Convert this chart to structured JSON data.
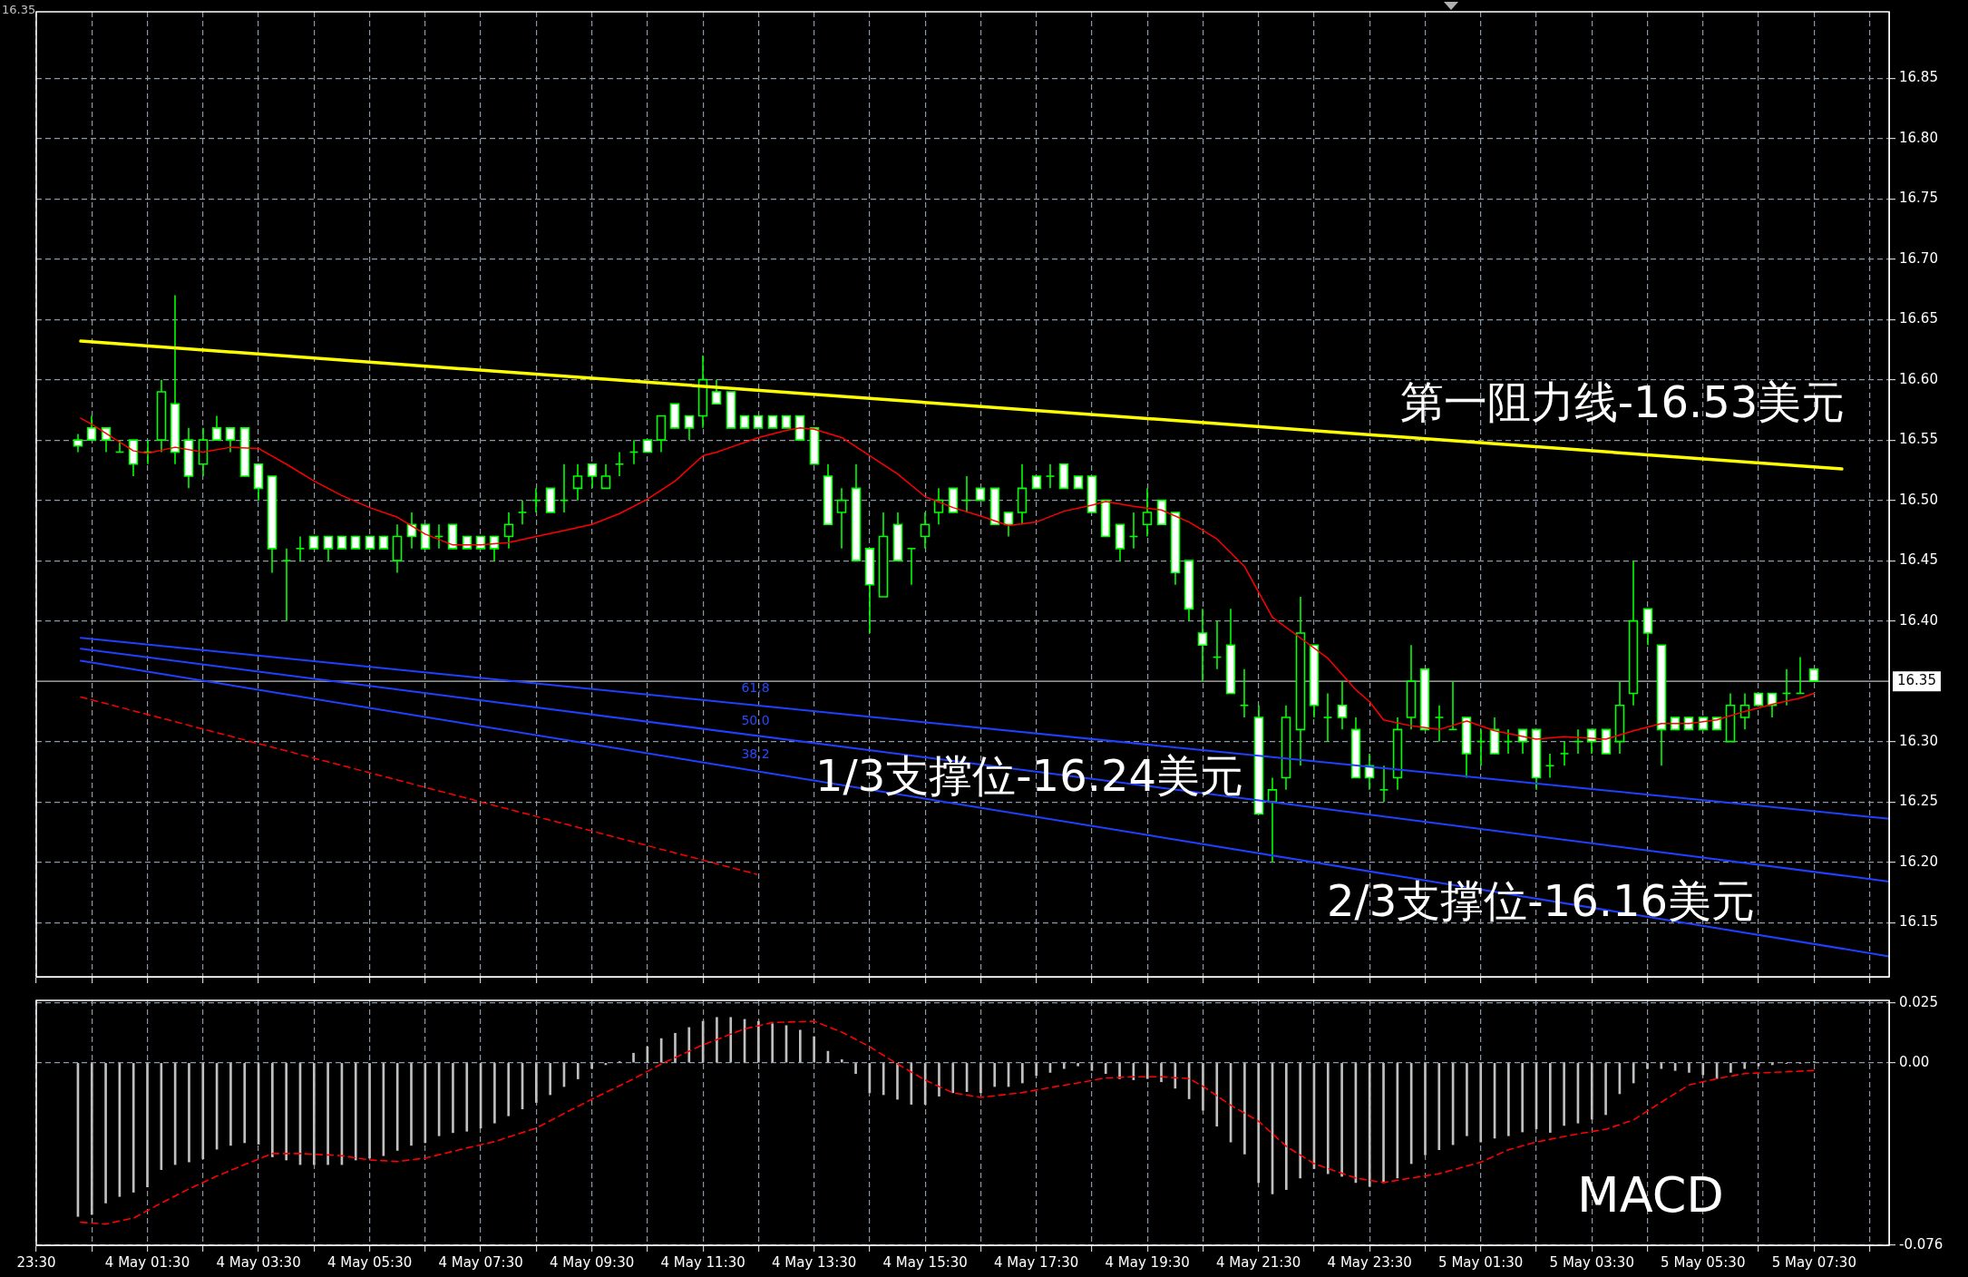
{
  "chart_data": [
    {
      "type": "candlestick",
      "x": [
        "--05-04T00:15",
        "--05-04T00:30",
        "--05-04T00:45",
        "--05-04T01:00",
        "--05-04T01:15",
        "--05-04T01:30",
        "--05-04T01:45",
        "--05-04T02:00",
        "--05-04T02:15",
        "--05-04T02:30",
        "--05-04T02:45",
        "--05-04T03:00",
        "--05-04T03:15",
        "--05-04T03:30",
        "--05-04T03:45",
        "--05-04T04:00",
        "--05-04T04:15",
        "--05-04T04:30",
        "--05-04T04:45",
        "--05-04T05:00",
        "--05-04T05:15",
        "--05-04T05:30",
        "--05-04T05:45",
        "--05-04T06:00",
        "--05-04T06:15",
        "--05-04T06:30",
        "--05-04T06:45",
        "--05-04T07:00",
        "--05-04T07:15",
        "--05-04T07:30",
        "--05-04T07:45",
        "--05-04T08:00",
        "--05-04T08:15",
        "--05-04T08:30",
        "--05-04T08:45",
        "--05-04T09:00",
        "--05-04T09:15",
        "--05-04T09:30",
        "--05-04T09:45",
        "--05-04T10:00",
        "--05-04T10:15",
        "--05-04T10:30",
        "--05-04T10:45",
        "--05-04T11:00",
        "--05-04T11:15",
        "--05-04T11:30",
        "--05-04T11:45",
        "--05-04T12:00",
        "--05-04T12:15",
        "--05-04T12:30",
        "--05-04T12:45",
        "--05-04T13:00",
        "--05-04T13:15",
        "--05-04T13:30",
        "--05-04T13:45",
        "--05-04T14:00",
        "--05-04T14:15",
        "--05-04T14:30",
        "--05-04T14:45",
        "--05-04T15:00",
        "--05-04T15:15",
        "--05-04T15:30",
        "--05-04T15:45",
        "--05-04T16:00",
        "--05-04T16:15",
        "--05-04T16:30",
        "--05-04T16:45",
        "--05-04T17:00",
        "--05-04T17:15",
        "--05-04T17:30",
        "--05-04T17:45",
        "--05-04T18:00",
        "--05-04T18:15",
        "--05-04T18:30",
        "--05-04T18:45",
        "--05-04T19:00",
        "--05-04T19:15",
        "--05-04T19:30",
        "--05-04T19:45",
        "--05-04T20:00",
        "--05-04T20:15",
        "--05-04T20:30",
        "--05-04T20:45",
        "--05-04T21:00",
        "--05-04T21:15",
        "--05-04T21:30",
        "--05-04T21:45",
        "--05-04T22:00",
        "--05-04T22:15",
        "--05-04T22:30",
        "--05-04T22:45",
        "--05-04T23:00",
        "--05-04T23:15",
        "--05-04T23:30",
        "--05-04T23:45",
        "--05-05T00:00",
        "--05-05T00:15",
        "--05-05T00:30",
        "--05-05T00:45",
        "--05-05T01:00",
        "--05-05T01:15",
        "--05-05T01:30",
        "--05-05T01:45",
        "--05-05T02:00",
        "--05-05T02:15",
        "--05-05T02:30",
        "--05-05T02:45",
        "--05-05T03:00",
        "--05-05T03:15",
        "--05-05T03:30",
        "--05-05T03:45",
        "--05-05T04:00",
        "--05-05T04:15",
        "--05-05T04:30",
        "--05-05T04:45",
        "--05-05T05:00",
        "--05-05T05:15",
        "--05-05T05:30",
        "--05-05T05:45",
        "--05-05T06:00",
        "--05-05T06:15",
        "--05-05T06:30",
        "--05-05T06:45",
        "--05-05T07:00",
        "--05-05T07:15",
        "--05-05T07:30"
      ],
      "ohlc": [
        [
          16.55,
          16.555,
          16.54,
          16.545
        ],
        [
          16.56,
          16.57,
          16.55,
          16.55
        ],
        [
          16.56,
          16.56,
          16.54,
          16.55
        ],
        [
          16.54,
          16.55,
          16.54,
          16.54
        ],
        [
          16.55,
          16.55,
          16.52,
          16.53
        ],
        [
          16.54,
          16.55,
          16.53,
          16.54
        ],
        [
          16.55,
          16.6,
          16.54,
          16.59
        ],
        [
          16.58,
          16.67,
          16.53,
          16.54
        ],
        [
          16.55,
          16.56,
          16.51,
          16.52
        ],
        [
          16.53,
          16.56,
          16.52,
          16.55
        ],
        [
          16.56,
          16.57,
          16.55,
          16.55
        ],
        [
          16.56,
          16.56,
          16.54,
          16.55
        ],
        [
          16.56,
          16.56,
          16.52,
          16.52
        ],
        [
          16.53,
          16.53,
          16.5,
          16.51
        ],
        [
          16.52,
          16.52,
          16.44,
          16.46
        ],
        [
          16.45,
          16.46,
          16.4,
          16.45
        ],
        [
          16.46,
          16.47,
          16.45,
          16.46
        ],
        [
          16.47,
          16.47,
          16.46,
          16.46
        ],
        [
          16.47,
          16.47,
          16.45,
          16.46
        ],
        [
          16.47,
          16.47,
          16.46,
          16.46
        ],
        [
          16.47,
          16.47,
          16.46,
          16.46
        ],
        [
          16.47,
          16.47,
          16.46,
          16.46
        ],
        [
          16.47,
          16.47,
          16.46,
          16.46
        ],
        [
          16.45,
          16.48,
          16.44,
          16.47
        ],
        [
          16.48,
          16.49,
          16.46,
          16.47
        ],
        [
          16.48,
          16.48,
          16.46,
          16.46
        ],
        [
          16.47,
          16.48,
          16.46,
          16.47
        ],
        [
          16.48,
          16.48,
          16.46,
          16.46
        ],
        [
          16.47,
          16.47,
          16.46,
          16.46
        ],
        [
          16.47,
          16.47,
          16.46,
          16.46
        ],
        [
          16.47,
          16.47,
          16.45,
          16.46
        ],
        [
          16.47,
          16.49,
          16.46,
          16.48
        ],
        [
          16.49,
          16.5,
          16.48,
          16.49
        ],
        [
          16.5,
          16.51,
          16.49,
          16.5
        ],
        [
          16.51,
          16.51,
          16.49,
          16.49
        ],
        [
          16.5,
          16.53,
          16.49,
          16.5
        ],
        [
          16.51,
          16.53,
          16.5,
          16.52
        ],
        [
          16.53,
          16.53,
          16.51,
          16.52
        ],
        [
          16.51,
          16.53,
          16.51,
          16.52
        ],
        [
          16.53,
          16.54,
          16.52,
          16.53
        ],
        [
          16.54,
          16.55,
          16.53,
          16.54
        ],
        [
          16.55,
          16.55,
          16.54,
          16.54
        ],
        [
          16.55,
          16.57,
          16.54,
          16.57
        ],
        [
          16.58,
          16.58,
          16.56,
          16.56
        ],
        [
          16.57,
          16.57,
          16.55,
          16.56
        ],
        [
          16.57,
          16.62,
          16.56,
          16.6
        ],
        [
          16.59,
          16.6,
          16.58,
          16.58
        ],
        [
          16.59,
          16.59,
          16.56,
          16.56
        ],
        [
          16.57,
          16.57,
          16.56,
          16.56
        ],
        [
          16.57,
          16.57,
          16.56,
          16.56
        ],
        [
          16.57,
          16.57,
          16.56,
          16.56
        ],
        [
          16.57,
          16.57,
          16.56,
          16.56
        ],
        [
          16.57,
          16.57,
          16.55,
          16.55
        ],
        [
          16.56,
          16.56,
          16.53,
          16.53
        ],
        [
          16.52,
          16.53,
          16.48,
          16.48
        ],
        [
          16.49,
          16.51,
          16.46,
          16.5
        ],
        [
          16.51,
          16.53,
          16.45,
          16.45
        ],
        [
          16.46,
          16.46,
          16.39,
          16.43
        ],
        [
          16.42,
          16.49,
          16.42,
          16.47
        ],
        [
          16.48,
          16.49,
          16.45,
          16.45
        ],
        [
          16.46,
          16.46,
          16.43,
          16.46
        ],
        [
          16.47,
          16.49,
          16.46,
          16.48
        ],
        [
          16.49,
          16.51,
          16.48,
          16.5
        ],
        [
          16.51,
          16.51,
          16.49,
          16.49
        ],
        [
          16.5,
          16.52,
          16.49,
          16.5
        ],
        [
          16.51,
          16.51,
          16.5,
          16.5
        ],
        [
          16.51,
          16.51,
          16.48,
          16.48
        ],
        [
          16.49,
          16.49,
          16.47,
          16.48
        ],
        [
          16.49,
          16.53,
          16.48,
          16.51
        ],
        [
          16.52,
          16.52,
          16.51,
          16.51
        ],
        [
          16.52,
          16.53,
          16.51,
          16.52
        ],
        [
          16.53,
          16.53,
          16.51,
          16.51
        ],
        [
          16.52,
          16.52,
          16.51,
          16.51
        ],
        [
          16.52,
          16.52,
          16.49,
          16.49
        ],
        [
          16.5,
          16.5,
          16.47,
          16.47
        ],
        [
          16.48,
          16.48,
          16.45,
          16.46
        ],
        [
          16.47,
          16.49,
          16.46,
          16.47
        ],
        [
          16.48,
          16.51,
          16.47,
          16.49
        ],
        [
          16.5,
          16.5,
          16.48,
          16.48
        ],
        [
          16.49,
          16.49,
          16.43,
          16.44
        ],
        [
          16.45,
          16.45,
          16.4,
          16.41
        ],
        [
          16.39,
          16.41,
          16.35,
          16.38
        ],
        [
          16.37,
          16.4,
          16.36,
          16.37
        ],
        [
          16.38,
          16.41,
          16.34,
          16.34
        ],
        [
          16.33,
          16.36,
          16.32,
          16.33
        ],
        [
          16.32,
          16.33,
          16.24,
          16.24
        ],
        [
          16.25,
          16.27,
          16.2,
          16.26
        ],
        [
          16.27,
          16.33,
          16.26,
          16.32
        ],
        [
          16.31,
          16.42,
          16.28,
          16.39
        ],
        [
          16.38,
          16.38,
          16.32,
          16.33
        ],
        [
          16.32,
          16.34,
          16.3,
          16.32
        ],
        [
          16.33,
          16.35,
          16.31,
          16.32
        ],
        [
          16.31,
          16.32,
          16.27,
          16.27
        ],
        [
          16.28,
          16.29,
          16.26,
          16.27
        ],
        [
          16.26,
          16.28,
          16.25,
          16.26
        ],
        [
          16.27,
          16.32,
          16.26,
          16.31
        ],
        [
          16.32,
          16.38,
          16.31,
          16.35
        ],
        [
          16.36,
          16.36,
          16.31,
          16.31
        ],
        [
          16.32,
          16.33,
          16.3,
          16.32
        ],
        [
          16.31,
          16.35,
          16.31,
          16.31
        ],
        [
          16.32,
          16.32,
          16.27,
          16.29
        ],
        [
          16.3,
          16.31,
          16.28,
          16.3
        ],
        [
          16.31,
          16.32,
          16.29,
          16.29
        ],
        [
          16.3,
          16.31,
          16.29,
          16.3
        ],
        [
          16.31,
          16.31,
          16.29,
          16.3
        ],
        [
          16.31,
          16.31,
          16.26,
          16.27
        ],
        [
          16.28,
          16.29,
          16.27,
          16.28
        ],
        [
          16.29,
          16.3,
          16.28,
          16.29
        ],
        [
          16.3,
          16.31,
          16.29,
          16.3
        ],
        [
          16.31,
          16.31,
          16.29,
          16.3
        ],
        [
          16.31,
          16.31,
          16.29,
          16.29
        ],
        [
          16.3,
          16.35,
          16.29,
          16.33
        ],
        [
          16.34,
          16.45,
          16.33,
          16.4
        ],
        [
          16.41,
          16.41,
          16.38,
          16.39
        ],
        [
          16.38,
          16.38,
          16.28,
          16.31
        ],
        [
          16.32,
          16.32,
          16.31,
          16.31
        ],
        [
          16.32,
          16.32,
          16.31,
          16.31
        ],
        [
          16.32,
          16.32,
          16.31,
          16.31
        ],
        [
          16.32,
          16.32,
          16.31,
          16.31
        ],
        [
          16.3,
          16.34,
          16.3,
          16.33
        ],
        [
          16.32,
          16.34,
          16.31,
          16.33
        ],
        [
          16.34,
          16.34,
          16.33,
          16.33
        ],
        [
          16.34,
          16.34,
          16.32,
          16.33
        ],
        [
          16.34,
          16.36,
          16.33,
          16.34
        ],
        [
          16.34,
          16.37,
          16.34,
          16.34
        ],
        [
          16.36,
          16.36,
          16.35,
          16.35
        ]
      ],
      "color": "#00ff00",
      "colors": [
        "#ffffff",
        "#ffffff",
        "#ffffff",
        "#00ff00",
        "#ffffff",
        "#00ff00",
        "#000000",
        "#ffffff",
        "#ffffff",
        "#000000",
        "#ffffff",
        "#ffffff",
        "#ffffff",
        "#ffffff",
        "#ffffff",
        "#00ff00",
        "#00ff00",
        "#ffffff",
        "#ffffff",
        "#ffffff",
        "#ffffff",
        "#ffffff",
        "#ffffff",
        "#000000",
        "#ffffff",
        "#ffffff",
        "#00ff00",
        "#ffffff",
        "#ffffff",
        "#ffffff",
        "#ffffff",
        "#000000",
        "#00ff00",
        "#00ff00",
        "#ffffff",
        "#00ff00",
        "#000000",
        "#ffffff",
        "#000000",
        "#00ff00",
        "#00ff00",
        "#ffffff",
        "#000000",
        "#ffffff",
        "#ffffff",
        "#000000",
        "#ffffff",
        "#ffffff",
        "#ffffff",
        "#ffffff",
        "#ffffff",
        "#ffffff",
        "#ffffff",
        "#ffffff",
        "#ffffff",
        "#000000",
        "#ffffff",
        "#ffffff",
        "#000000",
        "#ffffff",
        "#00ff00",
        "#000000",
        "#000000",
        "#ffffff",
        "#00ff00",
        "#ffffff",
        "#ffffff",
        "#ffffff",
        "#000000",
        "#ffffff",
        "#00ff00",
        "#ffffff",
        "#ffffff",
        "#ffffff",
        "#ffffff",
        "#ffffff",
        "#00ff00",
        "#000000",
        "#ffffff",
        "#ffffff",
        "#ffffff",
        "#ffffff",
        "#00ff00",
        "#ffffff",
        "#00ff00",
        "#ffffff",
        "#000000",
        "#000000",
        "#000000",
        "#ffffff",
        "#00ff00",
        "#ffffff",
        "#ffffff",
        "#ffffff",
        "#00ff00",
        "#000000",
        "#000000",
        "#ffffff",
        "#00ff00",
        "#00ff00",
        "#ffffff",
        "#00ff00",
        "#ffffff",
        "#00ff00",
        "#ffffff",
        "#ffffff",
        "#00ff00",
        "#00ff00",
        "#00ff00",
        "#ffffff",
        "#ffffff",
        "#000000",
        "#000000",
        "#ffffff",
        "#ffffff",
        "#ffffff",
        "#ffffff",
        "#ffffff",
        "#ffffff",
        "#000000",
        "#000000",
        "#ffffff",
        "#ffffff",
        "#00ff00",
        "#00ff00",
        "#ffffff"
      ],
      "series": [
        {
          "type": "line",
          "color": "#ff0000",
          "x": [
            "--05-04T00:18",
            "--05-04T00:30",
            "--05-04T01:15",
            "--05-04T01:30",
            "--05-04T02:00",
            "--05-04T02:30",
            "--05-04T03:00",
            "--05-04T03:30",
            "--05-04T04:00",
            "--05-04T04:30",
            "--05-04T05:00",
            "--05-04T05:30",
            "--05-04T06:00",
            "--05-04T06:30",
            "--05-04T07:00",
            "--05-04T07:30",
            "--05-04T08:00",
            "--05-04T08:30",
            "--05-04T09:00",
            "--05-04T09:30",
            "--05-04T10:00",
            "--05-04T10:30",
            "--05-04T11:00",
            "--05-04T11:30",
            "--05-04T11:45",
            "--05-04T12:00",
            "--05-04T12:30",
            "--05-04T13:00",
            "--05-04T13:15",
            "--05-04T13:30",
            "--05-04T14:00",
            "--05-04T14:30",
            "--05-04T15:00",
            "--05-04T15:30",
            "--05-04T16:00",
            "--05-04T16:30",
            "--05-04T17:00",
            "--05-04T17:30",
            "--05-04T18:00",
            "--05-04T18:30",
            "--05-04T18:45",
            "--05-04T19:15",
            "--05-04T19:45",
            "--05-04T20:15",
            "--05-04T20:45",
            "--05-04T21:15",
            "--05-04T21:45",
            "--05-04T22:15",
            "--05-04T22:45",
            "--05-04T23:00",
            "--05-04T23:15",
            "--05-04T23:30",
            "--05-04T23:45",
            "--05-05T00:15",
            "--05-05T00:45",
            "--05-05T01:15",
            "--05-05T01:45",
            "--05-05T02:30",
            "--05-05T03:00",
            "--05-05T03:45",
            "--05-05T04:15",
            "--05-05T04:45",
            "--05-05T05:15",
            "--05-05T05:45",
            "--05-05T06:15",
            "--05-05T06:45",
            "--05-05T07:15",
            "--05-05T07:30"
          ],
          "values": [
            16.568,
            16.563,
            16.541,
            16.539,
            16.544,
            16.54,
            16.544,
            16.543,
            16.53,
            16.516,
            16.504,
            16.494,
            16.486,
            16.472,
            16.463,
            16.463,
            16.465,
            16.47,
            16.475,
            16.48,
            16.489,
            16.501,
            16.516,
            16.537,
            16.54,
            16.544,
            16.552,
            16.558,
            16.56,
            16.559,
            16.552,
            16.537,
            16.522,
            16.503,
            16.494,
            16.487,
            16.479,
            16.482,
            16.491,
            16.496,
            16.499,
            16.495,
            16.492,
            16.482,
            16.468,
            16.445,
            16.403,
            16.386,
            16.369,
            16.356,
            16.343,
            16.333,
            16.318,
            16.313,
            16.31,
            16.317,
            16.309,
            16.302,
            16.304,
            16.302,
            16.309,
            16.315,
            16.315,
            16.318,
            16.325,
            16.331,
            16.336,
            16.34
          ]
        },
        {
          "type": "line",
          "color": "#ffff00",
          "x": [
            "--05-04T00:18",
            "--05-05T08:00"
          ],
          "values": [
            16.632,
            16.526
          ]
        },
        {
          "type": "line",
          "color": "#2040ff",
          "x": [
            "--05-04T00:18",
            "--05-05T08:51"
          ],
          "values": [
            16.386,
            16.236
          ]
        },
        {
          "type": "line",
          "color": "#2040ff",
          "x": [
            "--05-04T00:18",
            "--05-05T08:51"
          ],
          "values": [
            16.377,
            16.184
          ]
        },
        {
          "type": "line",
          "color": "#2040ff",
          "x": [
            "--05-04T00:18",
            "--05-05T08:51"
          ],
          "values": [
            16.367,
            16.122
          ]
        },
        {
          "type": "line",
          "color": "#ff0000",
          "line_style": "dashed",
          "x": [
            "--05-04T00:18",
            "--05-04T12:28"
          ],
          "values": [
            16.337,
            16.19
          ]
        }
      ],
      "xlim": [
        "--05-03T23:30",
        "--05-05T08:51"
      ],
      "xticks": [
        {
          "value": "--05-03T23:30",
          "label": null
        },
        {
          "value": "--05-04T00:30",
          "label": null
        },
        {
          "value": "--05-04T01:30",
          "label": null
        },
        {
          "value": "--05-04T02:30",
          "label": null
        },
        {
          "value": "--05-04T03:30",
          "label": null
        },
        {
          "value": "--05-04T04:30",
          "label": null
        },
        {
          "value": "--05-04T05:30",
          "label": null
        },
        {
          "value": "--05-04T06:30",
          "label": null
        },
        {
          "value": "--05-04T07:30",
          "label": null
        },
        {
          "value": "--05-04T08:30",
          "label": null
        },
        {
          "value": "--05-04T09:30",
          "label": null
        },
        {
          "value": "--05-04T10:30",
          "label": null
        },
        {
          "value": "--05-04T11:30",
          "label": null
        },
        {
          "value": "--05-04T12:30",
          "label": null
        },
        {
          "value": "--05-04T13:30",
          "label": null
        },
        {
          "value": "--05-04T14:30",
          "label": null
        },
        {
          "value": "--05-04T15:30",
          "label": null
        },
        {
          "value": "--05-04T16:30",
          "label": null
        },
        {
          "value": "--05-04T17:30",
          "label": null
        },
        {
          "value": "--05-04T18:30",
          "label": null
        },
        {
          "value": "--05-04T19:30",
          "label": null
        },
        {
          "value": "--05-04T20:30",
          "label": null
        },
        {
          "value": "--05-04T21:30",
          "label": null
        },
        {
          "value": "--05-04T22:30",
          "label": null
        },
        {
          "value": "--05-04T23:30",
          "label": null
        },
        {
          "value": "--05-05T00:30",
          "label": null
        },
        {
          "value": "--05-05T01:30",
          "label": null
        },
        {
          "value": "--05-05T02:30",
          "label": null
        },
        {
          "value": "--05-05T03:30",
          "label": null
        },
        {
          "value": "--05-05T04:30",
          "label": null
        },
        {
          "value": "--05-05T05:30",
          "label": null
        },
        {
          "value": "--05-05T06:30",
          "label": null
        },
        {
          "value": "--05-05T07:30",
          "label": null
        },
        {
          "value": "--05-05T08:30",
          "label": null
        }
      ],
      "ylim": [
        16.105,
        16.905
      ],
      "yticks": [
        16.15,
        {
          "value": 16.2,
          "label": "16.20"
        },
        16.25,
        {
          "value": 16.3,
          "label": "16.30"
        },
        {
          "value": 16.4,
          "label": "16.40"
        },
        16.45,
        {
          "value": 16.5,
          "label": "16.50"
        },
        16.55,
        {
          "value": 16.6,
          "label": "16.60"
        },
        16.65,
        {
          "value": 16.7,
          "label": "16.70"
        },
        16.75,
        {
          "value": 16.8,
          "label": "16.80"
        },
        16.85
      ],
      "tick_labels": "y",
      "grid": true,
      "ref_lines": [
        {
          "axis": "y",
          "value": 16.35,
          "label": "16.35",
          "color": "#c0c0c0"
        }
      ],
      "annotations": [
        "16.35",
        "第一阻力线-16.53美元",
        "1/3支撑位-16.24美元",
        "2/3支撑位-16.16美元",
        "61.8",
        "50.0",
        "38.2"
      ]
    },
    {
      "type": "bar",
      "x": [
        "--05-04T00:15",
        "--05-04T00:30",
        "--05-04T00:45",
        "--05-04T01:00",
        "--05-04T01:15",
        "--05-04T01:30",
        "--05-04T01:45",
        "--05-04T02:00",
        "--05-04T02:15",
        "--05-04T02:30",
        "--05-04T02:45",
        "--05-04T03:00",
        "--05-04T03:15",
        "--05-04T03:30",
        "--05-04T03:45",
        "--05-04T04:00",
        "--05-04T04:15",
        "--05-04T04:30",
        "--05-04T04:45",
        "--05-04T05:00",
        "--05-04T05:15",
        "--05-04T05:30",
        "--05-04T05:45",
        "--05-04T06:00",
        "--05-04T06:15",
        "--05-04T06:30",
        "--05-04T06:45",
        "--05-04T07:00",
        "--05-04T07:15",
        "--05-04T07:30",
        "--05-04T07:45",
        "--05-04T08:00",
        "--05-04T08:15",
        "--05-04T08:30",
        "--05-04T08:45",
        "--05-04T09:00",
        "--05-04T09:15",
        "--05-04T09:30",
        "--05-04T09:45",
        "--05-04T10:00",
        "--05-04T10:15",
        "--05-04T10:30",
        "--05-04T10:45",
        "--05-04T11:00",
        "--05-04T11:15",
        "--05-04T11:30",
        "--05-04T11:45",
        "--05-04T12:00",
        "--05-04T12:15",
        "--05-04T12:30",
        "--05-04T12:45",
        "--05-04T13:00",
        "--05-04T13:15",
        "--05-04T13:30",
        "--05-04T13:45",
        "--05-04T14:00",
        "--05-04T14:15",
        "--05-04T14:30",
        "--05-04T14:45",
        "--05-04T15:00",
        "--05-04T15:15",
        "--05-04T15:30",
        "--05-04T15:45",
        "--05-04T16:00",
        "--05-04T16:15",
        "--05-04T16:30",
        "--05-04T16:45",
        "--05-04T17:00",
        "--05-04T17:15",
        "--05-04T17:30",
        "--05-04T17:45",
        "--05-04T18:00",
        "--05-04T18:15",
        "--05-04T18:30",
        "--05-04T18:45",
        "--05-04T19:00",
        "--05-04T19:15",
        "--05-04T19:30",
        "--05-04T19:45",
        "--05-04T20:00",
        "--05-04T20:15",
        "--05-04T20:30",
        "--05-04T20:45",
        "--05-04T21:00",
        "--05-04T21:15",
        "--05-04T21:30",
        "--05-04T21:45",
        "--05-04T22:00",
        "--05-04T22:15",
        "--05-04T22:30",
        "--05-04T22:45",
        "--05-04T23:00",
        "--05-04T23:15",
        "--05-04T23:30",
        "--05-04T23:45",
        "--05-05T00:00",
        "--05-05T00:15",
        "--05-05T00:30",
        "--05-05T00:45",
        "--05-05T01:00",
        "--05-05T01:15",
        "--05-05T01:30",
        "--05-05T01:45",
        "--05-05T02:00",
        "--05-05T02:15",
        "--05-05T02:30",
        "--05-05T02:45",
        "--05-05T03:00",
        "--05-05T03:15",
        "--05-05T03:30",
        "--05-05T03:45",
        "--05-05T04:00",
        "--05-05T04:15",
        "--05-05T04:30",
        "--05-05T04:45",
        "--05-05T05:00",
        "--05-05T05:15",
        "--05-05T05:30",
        "--05-05T05:45",
        "--05-05T06:00",
        "--05-05T06:15",
        "--05-05T06:30",
        "--05-05T06:45",
        "--05-05T07:00",
        "--05-05T07:15",
        "--05-05T07:30"
      ],
      "series": [
        {
          "type": "bar",
          "color": "#c0c0c0",
          "values": [
            -0.064,
            -0.0632,
            -0.0584,
            -0.0557,
            -0.0539,
            -0.0517,
            -0.0445,
            -0.0424,
            -0.0413,
            -0.04,
            -0.036,
            -0.0344,
            -0.0333,
            -0.0339,
            -0.0392,
            -0.0405,
            -0.0424,
            -0.0424,
            -0.0424,
            -0.0424,
            -0.0405,
            -0.0397,
            -0.0387,
            -0.0365,
            -0.0344,
            -0.0333,
            -0.0304,
            -0.0291,
            -0.0285,
            -0.0272,
            -0.0251,
            -0.0221,
            -0.0192,
            -0.0165,
            -0.0133,
            -0.0099,
            -0.0067,
            -0.0024,
            -0.0008,
            0.0005,
            0.004,
            0.0067,
            0.0101,
            0.0123,
            0.0147,
            0.0173,
            0.0189,
            0.0189,
            0.0181,
            0.0173,
            0.0163,
            0.0155,
            0.0136,
            0.0109,
            0.0048,
            0.0013,
            -0.0045,
            -0.0125,
            -0.0133,
            -0.0152,
            -0.0173,
            -0.0173,
            -0.0139,
            -0.0125,
            -0.012,
            -0.0125,
            -0.0099,
            -0.0099,
            -0.0084,
            -0.0053,
            -0.004,
            -0.0024,
            -0.0013,
            -0.0032,
            -0.0045,
            -0.0066,
            -0.0071,
            -0.0066,
            -0.0079,
            -0.0106,
            -0.015,
            -0.0198,
            -0.0264,
            -0.033,
            -0.038,
            -0.0499,
            -0.0546,
            -0.0528,
            -0.048,
            -0.0441,
            -0.0462,
            -0.0473,
            -0.0499,
            -0.0515,
            -0.0499,
            -0.048,
            -0.042,
            -0.0383,
            -0.0362,
            -0.0341,
            -0.0304,
            -0.033,
            -0.0314,
            -0.0304,
            -0.0288,
            -0.0275,
            -0.029,
            -0.0261,
            -0.0251,
            -0.0235,
            -0.0216,
            -0.0129,
            -0.0084,
            -0.0024,
            -0.0024,
            -0.0032,
            -0.004,
            -0.005,
            -0.0066,
            -0.004,
            -0.0024,
            -0.0013,
            -0.0008,
            -0.0003,
            -0.0002,
            0.0005
          ]
        },
        {
          "type": "line",
          "color": "#ff0000",
          "line_style": "dashed",
          "x": [
            "--05-04T00:18",
            "--05-04T00:45",
            "--05-04T01:16",
            "--05-04T01:45",
            "--05-04T02:15",
            "--05-04T02:45",
            "--05-04T03:15",
            "--05-04T03:45",
            "--05-04T04:15",
            "--05-04T05:00",
            "--05-04T05:30",
            "--05-04T06:00",
            "--05-04T06:30",
            "--05-04T07:15",
            "--05-04T07:45",
            "--05-04T08:30",
            "--05-04T09:00",
            "--05-04T09:30",
            "--05-04T10:15",
            "--05-04T10:45",
            "--05-04T11:30",
            "--05-04T12:15",
            "--05-04T12:45",
            "--05-04T13:30",
            "--05-04T14:00",
            "--05-04T14:30",
            "--05-04T15:00",
            "--05-04T15:30",
            "--05-04T16:00",
            "--05-04T16:30",
            "--05-04T17:15",
            "--05-04T17:45",
            "--05-04T18:15",
            "--05-04T18:45",
            "--05-04T19:15",
            "--05-04T19:45",
            "--05-04T20:15",
            "--05-04T20:30",
            "--05-04T21:00",
            "--05-04T21:30",
            "--05-04T22:00",
            "--05-04T22:30",
            "--05-04T23:15",
            "--05-04T23:45",
            "--05-05T00:15",
            "--05-05T00:45",
            "--05-05T01:30",
            "--05-05T02:00",
            "--05-05T02:30",
            "--05-05T03:15",
            "--05-05T03:45",
            "--05-05T04:15",
            "--05-05T04:45",
            "--05-05T05:15",
            "--05-05T05:45",
            "--05-05T06:15",
            "--05-05T06:45",
            "--05-05T07:30"
          ],
          "values": [
            -0.0664,
            -0.0672,
            -0.0645,
            -0.0584,
            -0.0525,
            -0.0472,
            -0.0424,
            -0.0378,
            -0.0378,
            -0.0387,
            -0.0405,
            -0.0411,
            -0.0397,
            -0.0355,
            -0.0328,
            -0.0272,
            -0.0211,
            -0.0152,
            -0.0067,
            -0.0005,
            0.0075,
            0.0141,
            0.0168,
            0.0173,
            0.0128,
            0.0067,
            -0.0005,
            -0.0072,
            -0.0125,
            -0.0144,
            -0.0124,
            -0.0103,
            -0.0084,
            -0.0063,
            -0.0058,
            -0.0058,
            -0.0066,
            -0.0098,
            -0.0177,
            -0.0243,
            -0.0348,
            -0.042,
            -0.048,
            -0.0499,
            -0.048,
            -0.0462,
            -0.0414,
            -0.0362,
            -0.033,
            -0.0296,
            -0.0277,
            -0.0238,
            -0.0164,
            -0.0092,
            -0.0066,
            -0.0045,
            -0.004,
            -0.0032
          ]
        }
      ],
      "xlim": [
        "--05-03T23:30",
        "--05-05T08:51"
      ],
      "xticks": [
        {
          "value": "--05-03T23:30",
          "label": "23:30"
        },
        {
          "value": "--05-04T00:30",
          "label": null
        },
        {
          "value": "--05-04T01:30",
          "label": "4 May 01:30"
        },
        {
          "value": "--05-04T02:30",
          "label": null
        },
        {
          "value": "--05-04T03:30",
          "label": "4 May 03:30"
        },
        {
          "value": "--05-04T04:30",
          "label": null
        },
        {
          "value": "--05-04T05:30",
          "label": "4 May 05:30"
        },
        {
          "value": "--05-04T06:30",
          "label": null
        },
        {
          "value": "--05-04T07:30",
          "label": "4 May 07:30"
        },
        {
          "value": "--05-04T08:30",
          "label": null
        },
        {
          "value": "--05-04T09:30",
          "label": "4 May 09:30"
        },
        {
          "value": "--05-04T10:30",
          "label": null
        },
        {
          "value": "--05-04T11:30",
          "label": "4 May 11:30"
        },
        {
          "value": "--05-04T12:30",
          "label": null
        },
        {
          "value": "--05-04T13:30",
          "label": "4 May 13:30"
        },
        {
          "value": "--05-04T14:30",
          "label": null
        },
        {
          "value": "--05-04T15:30",
          "label": "4 May 15:30"
        },
        {
          "value": "--05-04T16:30",
          "label": null
        },
        {
          "value": "--05-04T17:30",
          "label": "4 May 17:30"
        },
        {
          "value": "--05-04T18:30",
          "label": null
        },
        {
          "value": "--05-04T19:30",
          "label": "4 May 19:30"
        },
        {
          "value": "--05-04T20:30",
          "label": null
        },
        {
          "value": "--05-04T21:30",
          "label": "4 May 21:30"
        },
        {
          "value": "--05-04T22:30",
          "label": null
        },
        {
          "value": "--05-04T23:30",
          "label": "4 May 23:30"
        },
        {
          "value": "--05-05T00:30",
          "label": null
        },
        {
          "value": "--05-05T01:30",
          "label": "5 May 01:30"
        },
        {
          "value": "--05-05T02:30",
          "label": null
        },
        {
          "value": "--05-05T03:30",
          "label": "5 May 03:30"
        },
        {
          "value": "--05-05T04:30",
          "label": null
        },
        {
          "value": "--05-05T05:30",
          "label": "5 May 05:30"
        },
        {
          "value": "--05-05T06:30",
          "label": null
        },
        {
          "value": "--05-05T07:30",
          "label": "5 May 07:30"
        },
        {
          "value": "--05-05T08:30",
          "label": null
        }
      ],
      "ylim": [
        -0.076,
        0.026
      ],
      "yticks": [
        0.025,
        {
          "value": 0,
          "label": "0.00"
        },
        -0.076
      ],
      "grid": true,
      "annotations": [
        "MACD"
      ]
    }
  ]
}
